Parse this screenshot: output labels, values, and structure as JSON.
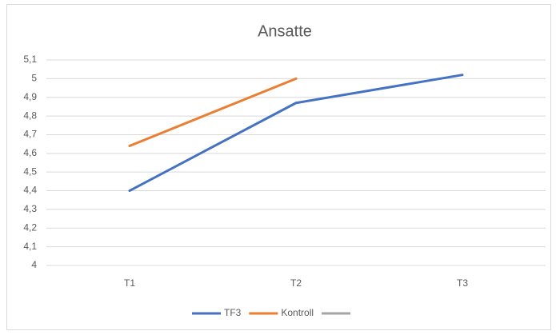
{
  "chart_data": {
    "type": "line",
    "title": "Ansatte",
    "categories": [
      "T1",
      "T2",
      "T3"
    ],
    "series": [
      {
        "name": "TF3",
        "color": "#4472c4",
        "values": [
          4.4,
          4.87,
          5.02
        ]
      },
      {
        "name": "Kontroll",
        "color": "#ed7d31",
        "values": [
          4.64,
          5.0,
          null
        ]
      },
      {
        "color": "#a5a5a5",
        "values": [
          null,
          null,
          null
        ]
      }
    ],
    "ylim": [
      4,
      5.1
    ],
    "yticks": [
      4,
      {
        "value": 4.1,
        "label": "4,1"
      },
      {
        "value": 4.2,
        "label": "4,2"
      },
      {
        "value": 4.3,
        "label": "4,3"
      },
      {
        "value": 4.4,
        "label": "4,4"
      },
      {
        "value": 4.5,
        "label": "4,5"
      },
      {
        "value": 4.6,
        "label": "4,6"
      },
      {
        "value": 4.7,
        "label": "4,7"
      },
      {
        "value": 4.8,
        "label": "4,8"
      },
      {
        "value": 4.9,
        "label": "4,9"
      },
      5,
      {
        "value": 5.1,
        "label": "5,1"
      }
    ],
    "grid": true,
    "legend": "bottom"
  }
}
